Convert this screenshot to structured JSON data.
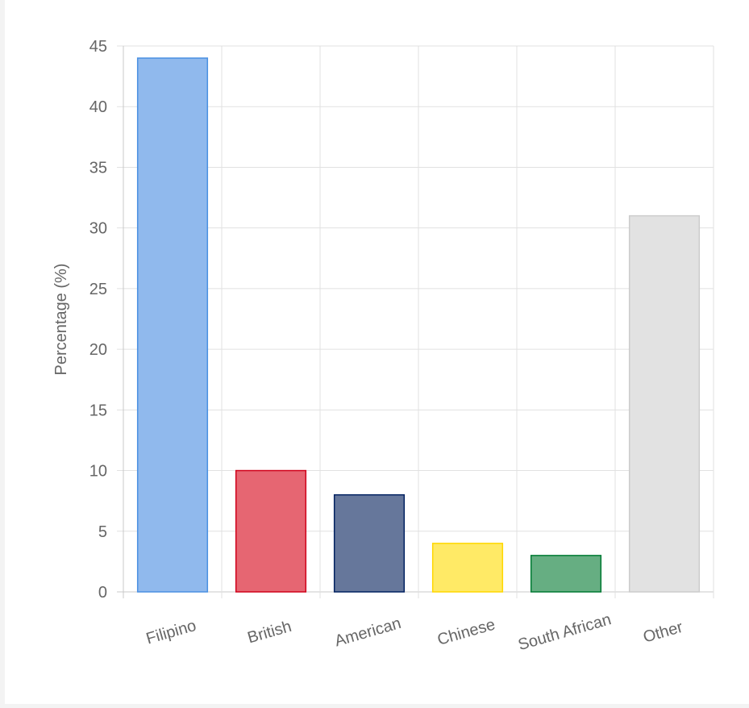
{
  "chart_data": {
    "type": "bar",
    "title": "",
    "xlabel": "",
    "ylabel": "Percentage (%)",
    "categories": [
      "Filipino",
      "British",
      "American",
      "Chinese",
      "South African",
      "Other"
    ],
    "values": [
      44,
      10,
      8,
      4,
      3,
      31
    ],
    "ylim": [
      0,
      45
    ],
    "ytick_step": 5,
    "grid": true,
    "legend": "none",
    "colors": {
      "fill": [
        "#90b9ed",
        "#e66672",
        "#66779b",
        "#ffea66",
        "#66ae82",
        "#e2e2e2"
      ],
      "stroke": [
        "#4a90e2",
        "#d0021b",
        "#002060",
        "#ffd700",
        "#007a33",
        "#cccccc"
      ],
      "grid": "#e1e1e1",
      "axis": "#c8c8c8",
      "text": "#666666"
    }
  }
}
